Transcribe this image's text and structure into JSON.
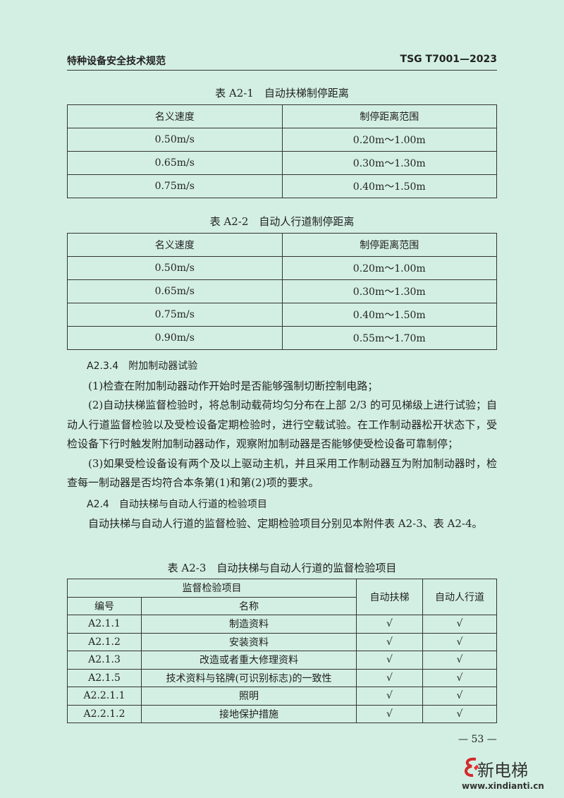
{
  "header": {
    "left": "特种设备安全技术规范",
    "right": "TSG T7001—2023"
  },
  "table1": {
    "caption": "表 A2-1　自动扶梯制停距离",
    "headers": [
      "名义速度",
      "制停距离范围"
    ],
    "rows": [
      [
        "0.50m/s",
        "0.20m～1.00m"
      ],
      [
        "0.65m/s",
        "0.30m～1.30m"
      ],
      [
        "0.75m/s",
        "0.40m～1.50m"
      ]
    ]
  },
  "table2": {
    "caption": "表 A2-2　自动人行道制停距离",
    "headers": [
      "名义速度",
      "制停距离范围"
    ],
    "rows": [
      [
        "0.50m/s",
        "0.20m～1.00m"
      ],
      [
        "0.65m/s",
        "0.30m～1.30m"
      ],
      [
        "0.75m/s",
        "0.40m～1.50m"
      ],
      [
        "0.90m/s",
        "0.55m～1.70m"
      ]
    ]
  },
  "section234": {
    "title": "A2.3.4　附加制动器试验",
    "items": [
      "(1)检查在附加制动器动作开始时是否能够强制切断控制电路；",
      "(2)自动扶梯监督检验时，将总制动载荷均匀分布在上部 2/3 的可见梯级上进行试验；自动人行道监督检验以及受检设备定期检验时，进行空载试验。在工作制动器松开状态下，受检设备下行时触发附加制动器动作，观察附加制动器是否能够使受检设备可靠制停；",
      "(3)如果受检设备设有两个及以上驱动主机，并且采用工作制动器互为附加制动器时，检查每一制动器是否均符合本条第(1)和第(2)项的要求。"
    ]
  },
  "section24": {
    "title": "A2.4　自动扶梯与自动人行道的检验项目",
    "text": "自动扶梯与自动人行道的监督检验、定期检验项目分别见本附件表 A2-3、表 A2-4。"
  },
  "table3": {
    "caption": "表 A2-3　自动扶梯与自动人行道的监督检验项目",
    "group_header": "监督检验项目",
    "col_no": "编号",
    "col_name": "名称",
    "col_esc": "自动扶梯",
    "col_walk": "自动人行道",
    "rows": [
      [
        "A2.1.1",
        "制造资料",
        "√",
        "√"
      ],
      [
        "A2.1.2",
        "安装资料",
        "√",
        "√"
      ],
      [
        "A2.1.3",
        "改造或者重大修理资料",
        "√",
        "√"
      ],
      [
        "A2.1.5",
        "技术资料与铭牌(可识别标志)的一致性",
        "√",
        "√"
      ],
      [
        "A2.2.1.1",
        "照明",
        "√",
        "√"
      ],
      [
        "A2.2.1.2",
        "接地保护措施",
        "√",
        "√"
      ]
    ]
  },
  "page_number": "— 53 —",
  "logo": {
    "name": "新电梯",
    "url": "www.xindianti.cn"
  }
}
